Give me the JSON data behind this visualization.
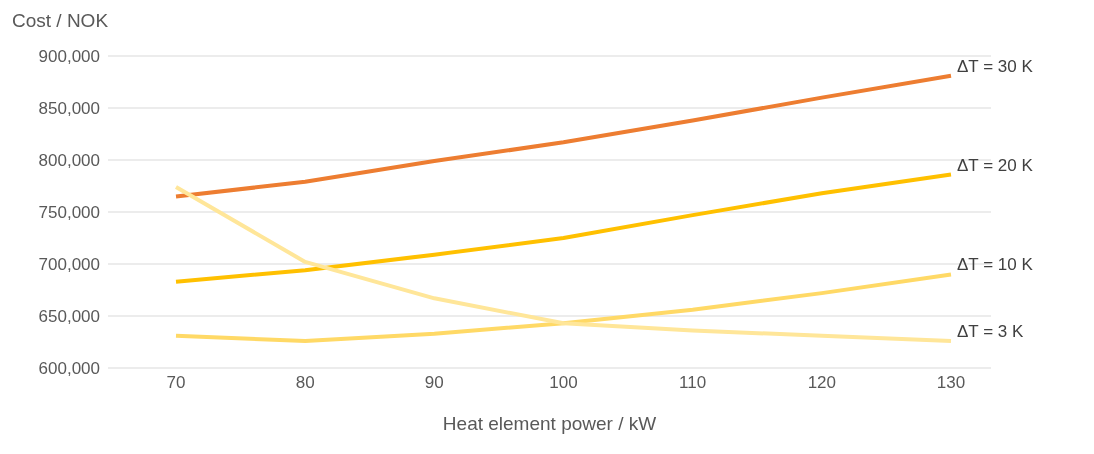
{
  "chart_data": {
    "type": "line",
    "ylabel": "Cost / NOK",
    "xlabel": "Heat element power / kW",
    "categories": [
      "70",
      "80",
      "90",
      "100",
      "110",
      "120",
      "130"
    ],
    "series": [
      {
        "name": "ΔT = 30 K",
        "color": "#ed7d31",
        "values": [
          765000,
          779000,
          799000,
          817000,
          838000,
          860000,
          881000
        ]
      },
      {
        "name": "ΔT = 20 K",
        "color": "#ffc000",
        "values": [
          683000,
          694000,
          709000,
          725000,
          747000,
          768000,
          786000
        ]
      },
      {
        "name": "ΔT = 10 K",
        "color": "#ffd966",
        "values": [
          631000,
          626000,
          633000,
          643000,
          656000,
          672000,
          690000
        ]
      },
      {
        "name": "ΔT = 3 K",
        "color": "#ffe699",
        "values": [
          774000,
          702000,
          667000,
          643000,
          636000,
          631000,
          626000
        ]
      }
    ],
    "ylim": [
      600000,
      900000
    ],
    "yticks": [
      {
        "value": 600000,
        "label": "600,000"
      },
      {
        "value": 650000,
        "label": "650,000"
      },
      {
        "value": 700000,
        "label": "700,000"
      },
      {
        "value": 750000,
        "label": "750,000"
      },
      {
        "value": 800000,
        "label": "800,000"
      },
      {
        "value": 850000,
        "label": "850,000"
      },
      {
        "value": 900000,
        "label": "900,000"
      }
    ],
    "grid": "y",
    "legend": false,
    "marker": "none",
    "line_style": "solid"
  }
}
